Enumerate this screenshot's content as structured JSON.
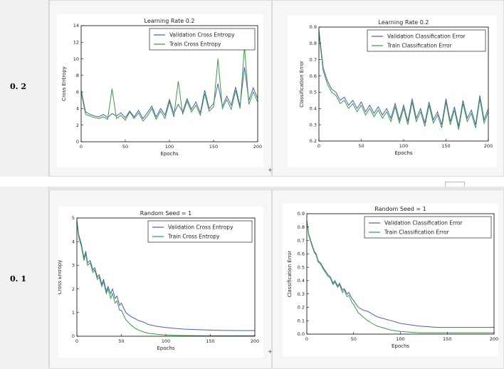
{
  "rows": [
    {
      "label": "0. 2"
    },
    {
      "label": "0. 1"
    }
  ],
  "chart_data": [
    {
      "type": "line",
      "title": "Learning Rate 0.2",
      "xlabel": "Epochs",
      "ylabel": "Cross Entropy",
      "xlim": [
        0,
        200
      ],
      "ylim": [
        0,
        14
      ],
      "xticks": [
        0,
        50,
        100,
        150,
        200
      ],
      "yticks": [
        0,
        2,
        4,
        6,
        8,
        10,
        12,
        14
      ],
      "legend_position": "top-right",
      "series": [
        {
          "name": "Validation Cross Entropy",
          "color": "#4a5fa8",
          "x": [
            0,
            5,
            10,
            15,
            20,
            25,
            30,
            35,
            40,
            45,
            50,
            55,
            60,
            65,
            70,
            75,
            80,
            85,
            90,
            95,
            100,
            105,
            110,
            115,
            120,
            125,
            130,
            135,
            140,
            145,
            150,
            155,
            160,
            165,
            170,
            175,
            180,
            185,
            190,
            195,
            200
          ],
          "y": [
            6.2,
            3.6,
            3.3,
            3.1,
            3.0,
            3.3,
            2.9,
            3.4,
            3.1,
            3.5,
            2.9,
            3.7,
            3.0,
            3.8,
            2.8,
            3.5,
            4.3,
            3.0,
            4.0,
            3.2,
            5.1,
            3.4,
            4.5,
            3.6,
            5.2,
            3.9,
            4.8,
            3.5,
            6.2,
            4.0,
            4.6,
            7.0,
            4.3,
            5.5,
            4.4,
            6.6,
            4.3,
            9.0,
            5.0,
            6.5,
            5.2
          ]
        },
        {
          "name": "Train Cross Entropy",
          "color": "#3a9a4a",
          "x": [
            0,
            5,
            10,
            15,
            20,
            25,
            30,
            35,
            40,
            45,
            50,
            55,
            60,
            65,
            70,
            75,
            80,
            85,
            90,
            95,
            100,
            105,
            110,
            115,
            120,
            125,
            130,
            135,
            140,
            145,
            150,
            155,
            160,
            165,
            170,
            175,
            180,
            185,
            190,
            195,
            200
          ],
          "y": [
            6.0,
            3.3,
            3.1,
            2.9,
            2.8,
            3.0,
            2.7,
            6.4,
            2.8,
            3.2,
            2.6,
            3.6,
            2.8,
            3.5,
            2.5,
            3.1,
            4.0,
            2.7,
            3.7,
            2.8,
            4.8,
            3.0,
            7.3,
            3.3,
            4.9,
            3.6,
            4.4,
            3.2,
            5.8,
            3.7,
            4.2,
            10.0,
            4.0,
            5.1,
            3.9,
            6.2,
            4.0,
            11.5,
            4.5,
            6.0,
            4.8
          ]
        }
      ]
    },
    {
      "type": "line",
      "title": "Learning Rate 0.2",
      "xlabel": "Epochs",
      "ylabel": "Classification Error",
      "xlim": [
        0,
        200
      ],
      "ylim": [
        0.2,
        0.9
      ],
      "xticks": [
        0,
        50,
        100,
        150,
        200
      ],
      "yticks": [
        0.2,
        0.3,
        0.4,
        0.5,
        0.6,
        0.7,
        0.8,
        0.9
      ],
      "legend_position": "top-right",
      "series": [
        {
          "name": "Validation Classification Error",
          "color": "#4a5fa8",
          "x": [
            0,
            5,
            10,
            15,
            20,
            25,
            30,
            35,
            40,
            45,
            50,
            55,
            60,
            65,
            70,
            75,
            80,
            85,
            90,
            95,
            100,
            105,
            110,
            115,
            120,
            125,
            130,
            135,
            140,
            145,
            150,
            155,
            160,
            165,
            170,
            175,
            180,
            185,
            190,
            195,
            200
          ],
          "y": [
            0.88,
            0.65,
            0.57,
            0.52,
            0.5,
            0.45,
            0.47,
            0.42,
            0.45,
            0.4,
            0.44,
            0.38,
            0.42,
            0.37,
            0.41,
            0.36,
            0.4,
            0.34,
            0.43,
            0.33,
            0.42,
            0.32,
            0.46,
            0.34,
            0.4,
            0.31,
            0.44,
            0.33,
            0.38,
            0.3,
            0.46,
            0.32,
            0.41,
            0.29,
            0.45,
            0.34,
            0.39,
            0.3,
            0.48,
            0.33,
            0.4
          ]
        },
        {
          "name": "Train Classification Error",
          "color": "#3a9a4a",
          "x": [
            0,
            5,
            10,
            15,
            20,
            25,
            30,
            35,
            40,
            45,
            50,
            55,
            60,
            65,
            70,
            75,
            80,
            85,
            90,
            95,
            100,
            105,
            110,
            115,
            120,
            125,
            130,
            135,
            140,
            145,
            150,
            155,
            160,
            165,
            170,
            175,
            180,
            185,
            190,
            195,
            200
          ],
          "y": [
            0.86,
            0.63,
            0.55,
            0.5,
            0.48,
            0.43,
            0.45,
            0.4,
            0.43,
            0.38,
            0.42,
            0.36,
            0.4,
            0.35,
            0.39,
            0.34,
            0.38,
            0.32,
            0.41,
            0.31,
            0.4,
            0.3,
            0.44,
            0.32,
            0.38,
            0.29,
            0.42,
            0.31,
            0.36,
            0.28,
            0.44,
            0.3,
            0.39,
            0.27,
            0.43,
            0.32,
            0.37,
            0.28,
            0.46,
            0.31,
            0.38
          ]
        }
      ]
    },
    {
      "type": "line",
      "title": "Random Seed = 1",
      "xlabel": "Epochs",
      "ylabel": "Cross Entropy",
      "xlim": [
        0,
        200
      ],
      "ylim": [
        0,
        5
      ],
      "xticks": [
        0,
        50,
        100,
        150,
        200
      ],
      "yticks": [
        0,
        1,
        2,
        3,
        4,
        5
      ],
      "legend_position": "top-right",
      "series": [
        {
          "name": "Validation Cross Entropy",
          "color": "#4a5fa8",
          "x": [
            0,
            2,
            5,
            8,
            10,
            12,
            15,
            18,
            20,
            23,
            25,
            28,
            30,
            33,
            35,
            38,
            40,
            43,
            45,
            48,
            50,
            55,
            60,
            65,
            70,
            75,
            80,
            90,
            100,
            110,
            120,
            140,
            160,
            180,
            200
          ],
          "y": [
            4.9,
            4.3,
            3.9,
            3.3,
            3.6,
            3.1,
            3.2,
            2.8,
            2.9,
            2.5,
            2.6,
            2.2,
            2.4,
            1.9,
            2.1,
            1.8,
            2.0,
            1.6,
            1.7,
            1.3,
            1.4,
            1.0,
            0.85,
            0.75,
            0.65,
            0.6,
            0.5,
            0.42,
            0.37,
            0.33,
            0.3,
            0.27,
            0.25,
            0.24,
            0.24
          ]
        },
        {
          "name": "Train Cross Entropy",
          "color": "#3a9a4a",
          "x": [
            0,
            2,
            5,
            8,
            10,
            12,
            15,
            18,
            20,
            23,
            25,
            28,
            30,
            33,
            35,
            38,
            40,
            43,
            45,
            48,
            50,
            55,
            60,
            65,
            70,
            75,
            80,
            90,
            100,
            110,
            120,
            140,
            160,
            180,
            200
          ],
          "y": [
            4.8,
            4.2,
            3.8,
            3.2,
            3.5,
            3.0,
            3.1,
            2.7,
            2.8,
            2.4,
            2.5,
            2.1,
            2.3,
            1.8,
            2.0,
            1.6,
            1.8,
            1.4,
            1.5,
            1.1,
            1.1,
            0.7,
            0.5,
            0.35,
            0.25,
            0.18,
            0.13,
            0.08,
            0.05,
            0.04,
            0.03,
            0.02,
            0.02,
            0.02,
            0.02
          ]
        }
      ]
    },
    {
      "type": "line",
      "title": "Random Seed = 1",
      "xlabel": "Epochs",
      "ylabel": "Classification Error",
      "xlim": [
        0,
        200
      ],
      "ylim": [
        0.0,
        0.9
      ],
      "xticks": [
        0,
        50,
        100,
        150,
        200
      ],
      "yticks": [
        0.0,
        0.1,
        0.2,
        0.3,
        0.4,
        0.5,
        0.6,
        0.7,
        0.8,
        0.9
      ],
      "legend_position": "top-right",
      "series": [
        {
          "name": "Validation Classification Error",
          "color": "#4a5fa8",
          "x": [
            0,
            2,
            5,
            8,
            10,
            12,
            15,
            18,
            20,
            23,
            25,
            28,
            30,
            33,
            35,
            38,
            40,
            43,
            45,
            48,
            50,
            55,
            60,
            65,
            70,
            75,
            80,
            90,
            100,
            110,
            120,
            140,
            160,
            180,
            200
          ],
          "y": [
            0.85,
            0.75,
            0.68,
            0.62,
            0.6,
            0.55,
            0.53,
            0.49,
            0.47,
            0.44,
            0.43,
            0.38,
            0.4,
            0.36,
            0.38,
            0.33,
            0.34,
            0.3,
            0.31,
            0.27,
            0.25,
            0.2,
            0.18,
            0.17,
            0.15,
            0.13,
            0.12,
            0.1,
            0.08,
            0.07,
            0.06,
            0.05,
            0.05,
            0.05,
            0.05
          ]
        },
        {
          "name": "Train Classification Error",
          "color": "#3a9a4a",
          "x": [
            0,
            2,
            5,
            8,
            10,
            12,
            15,
            18,
            20,
            23,
            25,
            28,
            30,
            33,
            35,
            38,
            40,
            43,
            45,
            48,
            50,
            55,
            60,
            65,
            70,
            75,
            80,
            90,
            100,
            110,
            120,
            140,
            160,
            180,
            200
          ],
          "y": [
            0.85,
            0.74,
            0.67,
            0.61,
            0.59,
            0.54,
            0.52,
            0.48,
            0.46,
            0.43,
            0.42,
            0.37,
            0.39,
            0.35,
            0.37,
            0.31,
            0.33,
            0.28,
            0.29,
            0.24,
            0.22,
            0.16,
            0.13,
            0.1,
            0.08,
            0.06,
            0.05,
            0.03,
            0.02,
            0.015,
            0.01,
            0.01,
            0.01,
            0.01,
            0.01
          ]
        }
      ]
    }
  ]
}
